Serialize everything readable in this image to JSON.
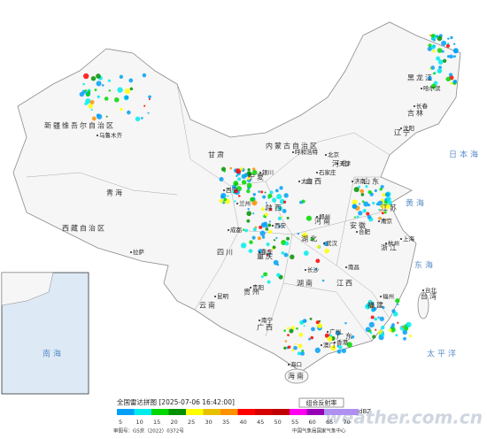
{
  "header": {
    "title": "全国雷达拼图 [2025-07-06 16:42:00]",
    "product": "组合反射率"
  },
  "legend": {
    "values": [
      5,
      10,
      15,
      20,
      25,
      30,
      35,
      40,
      45,
      50,
      55,
      60,
      65,
      70
    ],
    "unit": "dBZ",
    "colors": [
      "#01a0f6",
      "#00ecec",
      "#00d800",
      "#019000",
      "#ffff00",
      "#e7c000",
      "#ff9000",
      "#ff0000",
      "#d60000",
      "#c00000",
      "#ff00f0",
      "#9600b4",
      "#ad90f0",
      "#ad90f0"
    ]
  },
  "footer": {
    "approval": "审图号：GS京（2022）0372号",
    "source": "中国气象局国家气象中心",
    "watermark": "weather.com.cn"
  },
  "map": {
    "regions": [
      "新疆维吾尔自治区",
      "西藏自治区",
      "青海",
      "甘肃",
      "内蒙古自治区",
      "黑龙江",
      "吉林",
      "辽宁",
      "河北",
      "山西",
      "陕西",
      "宁夏",
      "四川",
      "重庆",
      "贵州",
      "云南",
      "广西",
      "广东",
      "湖南",
      "湖北",
      "河南",
      "山东",
      "江苏",
      "安徽",
      "浙江",
      "江西",
      "福建",
      "台湾",
      "海南"
    ],
    "cities": [
      "乌鲁木齐",
      "拉萨",
      "西宁",
      "兰州",
      "银川",
      "呼和浩特",
      "哈尔滨",
      "长春",
      "沈阳",
      "北京",
      "天津",
      "石家庄",
      "太原",
      "济南",
      "郑州",
      "西安",
      "成都",
      "重庆",
      "贵阳",
      "昆明",
      "南宁",
      "广州",
      "长沙",
      "武汉",
      "南昌",
      "合肥",
      "南京",
      "上海",
      "杭州",
      "福州",
      "台北",
      "海口",
      "香港",
      "澳门"
    ],
    "seas": [
      "日本海",
      "黄海",
      "东海",
      "太平洋",
      "南海"
    ]
  }
}
